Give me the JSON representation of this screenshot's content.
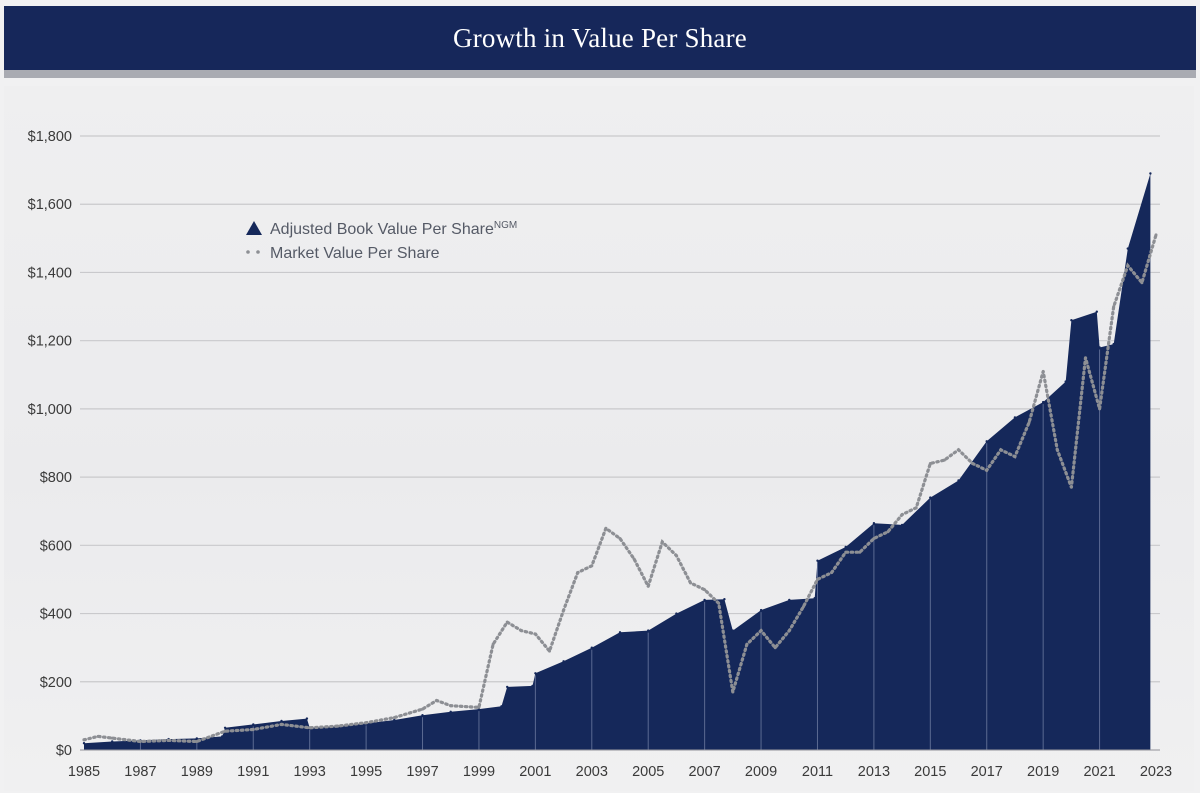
{
  "header": {
    "title": "Growth in Value Per Share"
  },
  "colors": {
    "header_bg": "#16275a",
    "book_fill": "#15285a",
    "market_dots": "#8d8f94",
    "grid": "#c9c9cc"
  },
  "chart_data": {
    "type": "area",
    "title": "Growth in Value Per Share",
    "xlabel": "",
    "ylabel": "",
    "xlim": [
      1985,
      2023
    ],
    "ylim": [
      0,
      1800
    ],
    "y_ticks": [
      0,
      200,
      400,
      600,
      800,
      1000,
      1200,
      1400,
      1600,
      1800
    ],
    "y_tick_labels": [
      "$0",
      "$200",
      "$400",
      "$600",
      "$800",
      "$1,000",
      "$1,200",
      "$1,400",
      "$1,600",
      "$1,800"
    ],
    "x_ticks": [
      1985,
      1987,
      1989,
      1991,
      1993,
      1995,
      1997,
      1999,
      2001,
      2003,
      2005,
      2007,
      2009,
      2011,
      2013,
      2015,
      2017,
      2019,
      2021,
      2023
    ],
    "x_tick_labels": [
      "1985",
      "1987",
      "1989",
      "1991",
      "1993",
      "1995",
      "1997",
      "1999",
      "2001",
      "2003",
      "2005",
      "2007",
      "2009",
      "2011",
      "2013",
      "2015",
      "2017",
      "2019",
      "2021",
      "2023"
    ],
    "grid": true,
    "legend_position": "upper-left",
    "legend": [
      {
        "label": "Adjusted Book Value Per Share",
        "superscript": "NGM",
        "marker": "filled-triangle"
      },
      {
        "label": "Market Value Per Share",
        "marker": "dotted-line"
      }
    ],
    "series": [
      {
        "name": "Adjusted Book Value Per Share",
        "style": "filled-area",
        "x": [
          1985,
          1986,
          1987,
          1988,
          1989,
          1989.9,
          1990,
          1991,
          1992,
          1992.9,
          1993,
          1994,
          1995,
          1996,
          1997,
          1998,
          1999,
          1999.8,
          2000,
          2000.9,
          2001,
          2002,
          2003,
          2004,
          2005,
          2006,
          2007,
          2007.7,
          2008,
          2009,
          2010,
          2010.9,
          2011,
          2012,
          2013,
          2014,
          2015,
          2016,
          2017,
          2018,
          2019,
          2019.8,
          2020,
          2020.9,
          2021,
          2021.5,
          2022,
          2022.8
        ],
        "values": [
          20,
          25,
          28,
          32,
          34,
          40,
          65,
          75,
          85,
          92,
          65,
          70,
          78,
          88,
          102,
          112,
          120,
          128,
          185,
          188,
          225,
          260,
          300,
          345,
          350,
          400,
          440,
          442,
          350,
          410,
          440,
          445,
          555,
          595,
          665,
          660,
          740,
          790,
          905,
          975,
          1020,
          1080,
          1260,
          1285,
          1180,
          1190,
          1470,
          1690
        ]
      },
      {
        "name": "Market Value Per Share",
        "style": "dotted-line",
        "x": [
          1985,
          1985.5,
          1986,
          1987,
          1988,
          1989,
          1990,
          1991,
          1992,
          1993,
          1994,
          1995,
          1996,
          1997,
          1997.5,
          1998,
          1999,
          1999.5,
          2000,
          2000.5,
          2001,
          2001.5,
          2002,
          2002.5,
          2003,
          2003.5,
          2004,
          2004.5,
          2005,
          2005.5,
          2006,
          2006.5,
          2007,
          2007.5,
          2008,
          2008.5,
          2009,
          2009.5,
          2010,
          2010.5,
          2011,
          2011.5,
          2012,
          2012.5,
          2013,
          2013.5,
          2014,
          2014.5,
          2015,
          2015.5,
          2016,
          2016.5,
          2017,
          2017.5,
          2018,
          2018.5,
          2019,
          2019.5,
          2020,
          2020.5,
          2021,
          2021.5,
          2022,
          2022.5,
          2023
        ],
        "values": [
          30,
          40,
          35,
          25,
          28,
          25,
          55,
          60,
          75,
          65,
          70,
          80,
          95,
          120,
          145,
          130,
          125,
          310,
          375,
          350,
          340,
          290,
          410,
          520,
          540,
          650,
          620,
          560,
          480,
          610,
          570,
          490,
          470,
          430,
          170,
          310,
          350,
          300,
          350,
          420,
          500,
          520,
          580,
          580,
          620,
          640,
          690,
          710,
          840,
          850,
          880,
          840,
          820,
          880,
          860,
          960,
          1110,
          880,
          770,
          1150,
          1000,
          1300,
          1420,
          1370,
          1510
        ]
      }
    ]
  }
}
